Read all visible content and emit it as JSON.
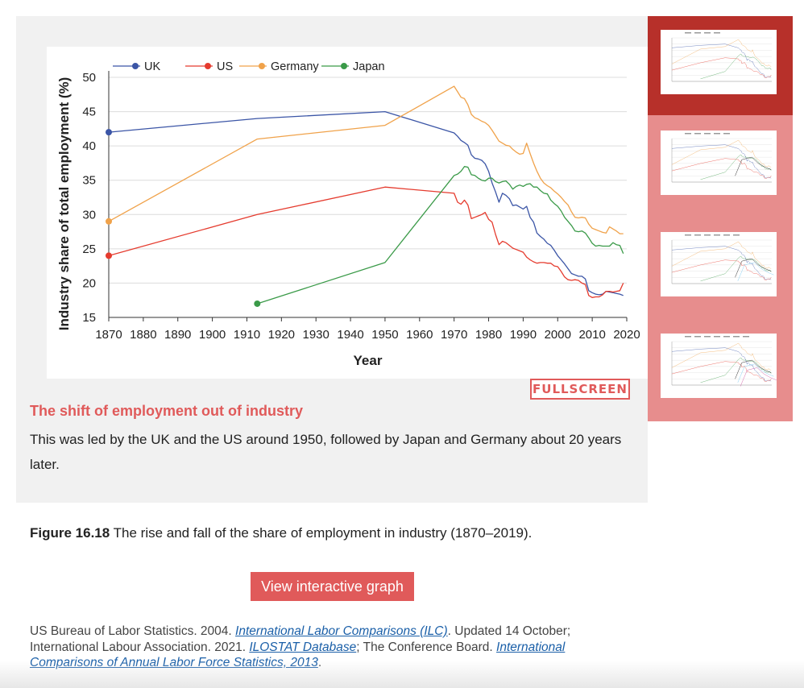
{
  "chart_data": {
    "type": "line",
    "xlabel": "Year",
    "ylabel": "Industry share of total employment (%)",
    "xlim": [
      1870,
      2020
    ],
    "ylim": [
      15,
      50
    ],
    "xticks": [
      1870,
      1880,
      1890,
      1900,
      1910,
      1920,
      1930,
      1940,
      1950,
      1960,
      1970,
      1980,
      1990,
      2000,
      2010,
      2020
    ],
    "yticks": [
      15,
      20,
      25,
      30,
      35,
      40,
      45,
      50
    ],
    "grid": true,
    "legend": "top-left",
    "series": [
      {
        "name": "UK",
        "color": "#3b55a6",
        "points": [
          [
            1870,
            42
          ],
          [
            1913,
            44
          ],
          [
            1950,
            45
          ],
          [
            1970,
            41.9
          ],
          [
            1971,
            41.4
          ],
          [
            1972,
            40.8
          ],
          [
            1973,
            40.5
          ],
          [
            1974,
            40.1
          ],
          [
            1975,
            38.7
          ],
          [
            1976,
            38.2
          ],
          [
            1977,
            38.1
          ],
          [
            1978,
            37.9
          ],
          [
            1979,
            37.4
          ],
          [
            1980,
            36.3
          ],
          [
            1981,
            34.6
          ],
          [
            1982,
            33.3
          ],
          [
            1983,
            31.8
          ],
          [
            1984,
            33.1
          ],
          [
            1985,
            32.8
          ],
          [
            1986,
            32.3
          ],
          [
            1987,
            31.3
          ],
          [
            1988,
            31.4
          ],
          [
            1989,
            31.1
          ],
          [
            1990,
            30.8
          ],
          [
            1991,
            31.2
          ],
          [
            1992,
            29.6
          ],
          [
            1993,
            28.9
          ],
          [
            1994,
            27.3
          ],
          [
            1995,
            26.8
          ],
          [
            1996,
            26.4
          ],
          [
            1997,
            25.8
          ],
          [
            1998,
            25.5
          ],
          [
            1999,
            24.8
          ],
          [
            2000,
            24.0
          ],
          [
            2001,
            23.4
          ],
          [
            2002,
            22.8
          ],
          [
            2003,
            22.1
          ],
          [
            2004,
            21.4
          ],
          [
            2005,
            21.2
          ],
          [
            2006,
            21.0
          ],
          [
            2007,
            21.0
          ],
          [
            2008,
            20.6
          ],
          [
            2009,
            18.9
          ],
          [
            2010,
            18.6
          ],
          [
            2011,
            18.4
          ],
          [
            2012,
            18.3
          ],
          [
            2013,
            18.4
          ],
          [
            2014,
            18.8
          ],
          [
            2015,
            18.7
          ],
          [
            2016,
            18.6
          ],
          [
            2017,
            18.5
          ],
          [
            2018,
            18.4
          ],
          [
            2019,
            18.2
          ]
        ]
      },
      {
        "name": "US",
        "color": "#e53b2e",
        "points": [
          [
            1870,
            24
          ],
          [
            1913,
            30
          ],
          [
            1950,
            34
          ],
          [
            1970,
            33.1
          ],
          [
            1971,
            31.8
          ],
          [
            1972,
            31.5
          ],
          [
            1973,
            32.1
          ],
          [
            1974,
            31.4
          ],
          [
            1975,
            29.4
          ],
          [
            1976,
            29.6
          ],
          [
            1977,
            29.8
          ],
          [
            1978,
            30.0
          ],
          [
            1979,
            30.3
          ],
          [
            1980,
            29.3
          ],
          [
            1981,
            28.9
          ],
          [
            1982,
            27.1
          ],
          [
            1983,
            25.6
          ],
          [
            1984,
            26.1
          ],
          [
            1985,
            25.9
          ],
          [
            1986,
            25.5
          ],
          [
            1987,
            25.1
          ],
          [
            1988,
            24.9
          ],
          [
            1989,
            24.7
          ],
          [
            1990,
            24.5
          ],
          [
            1991,
            23.8
          ],
          [
            1992,
            23.4
          ],
          [
            1993,
            23.1
          ],
          [
            1994,
            22.9
          ],
          [
            1995,
            23.0
          ],
          [
            1996,
            23.0
          ],
          [
            1997,
            22.9
          ],
          [
            1998,
            22.9
          ],
          [
            1999,
            22.5
          ],
          [
            2000,
            22.4
          ],
          [
            2001,
            21.7
          ],
          [
            2002,
            20.9
          ],
          [
            2003,
            20.5
          ],
          [
            2004,
            20.4
          ],
          [
            2005,
            20.5
          ],
          [
            2006,
            20.4
          ],
          [
            2007,
            20.0
          ],
          [
            2008,
            19.8
          ],
          [
            2009,
            18.2
          ],
          [
            2010,
            17.9
          ],
          [
            2011,
            18.0
          ],
          [
            2012,
            18.0
          ],
          [
            2013,
            18.3
          ],
          [
            2014,
            18.8
          ],
          [
            2015,
            18.8
          ],
          [
            2016,
            18.7
          ],
          [
            2017,
            18.8
          ],
          [
            2018,
            18.9
          ],
          [
            2019,
            20.0
          ]
        ]
      },
      {
        "name": "Germany",
        "color": "#f0a24a",
        "points": [
          [
            1870,
            29
          ],
          [
            1913,
            41
          ],
          [
            1950,
            43
          ],
          [
            1970,
            48.7
          ],
          [
            1971,
            47.9
          ],
          [
            1972,
            47.1
          ],
          [
            1973,
            46.9
          ],
          [
            1974,
            46.0
          ],
          [
            1975,
            44.6
          ],
          [
            1976,
            44.1
          ],
          [
            1977,
            43.9
          ],
          [
            1978,
            43.6
          ],
          [
            1979,
            43.4
          ],
          [
            1980,
            43.0
          ],
          [
            1981,
            42.3
          ],
          [
            1982,
            41.5
          ],
          [
            1983,
            40.7
          ],
          [
            1984,
            40.4
          ],
          [
            1985,
            40.1
          ],
          [
            1986,
            40.0
          ],
          [
            1987,
            39.5
          ],
          [
            1988,
            39.1
          ],
          [
            1989,
            38.8
          ],
          [
            1990,
            38.9
          ],
          [
            1991,
            40.4
          ],
          [
            1992,
            38.9
          ],
          [
            1993,
            37.5
          ],
          [
            1994,
            36.3
          ],
          [
            1995,
            35.3
          ],
          [
            1996,
            34.6
          ],
          [
            1997,
            34.2
          ],
          [
            1998,
            33.9
          ],
          [
            1999,
            33.4
          ],
          [
            2000,
            33.0
          ],
          [
            2001,
            32.5
          ],
          [
            2002,
            31.9
          ],
          [
            2003,
            31.4
          ],
          [
            2004,
            30.4
          ],
          [
            2005,
            29.6
          ],
          [
            2006,
            29.5
          ],
          [
            2007,
            29.6
          ],
          [
            2008,
            29.5
          ],
          [
            2009,
            28.6
          ],
          [
            2010,
            28.0
          ],
          [
            2011,
            27.8
          ],
          [
            2012,
            27.6
          ],
          [
            2013,
            27.4
          ],
          [
            2014,
            27.3
          ],
          [
            2015,
            28.2
          ],
          [
            2016,
            27.9
          ],
          [
            2017,
            27.6
          ],
          [
            2018,
            27.2
          ],
          [
            2019,
            27.2
          ]
        ]
      },
      {
        "name": "Japan",
        "color": "#3a9a48",
        "points": [
          [
            1913,
            17
          ],
          [
            1950,
            23
          ],
          [
            1970,
            35.7
          ],
          [
            1971,
            35.9
          ],
          [
            1972,
            36.3
          ],
          [
            1973,
            37.0
          ],
          [
            1974,
            36.9
          ],
          [
            1975,
            35.8
          ],
          [
            1976,
            35.7
          ],
          [
            1977,
            35.3
          ],
          [
            1978,
            35.0
          ],
          [
            1979,
            34.9
          ],
          [
            1980,
            35.3
          ],
          [
            1981,
            35.3
          ],
          [
            1982,
            34.8
          ],
          [
            1983,
            34.6
          ],
          [
            1984,
            34.8
          ],
          [
            1985,
            34.9
          ],
          [
            1986,
            34.4
          ],
          [
            1987,
            33.7
          ],
          [
            1988,
            34.1
          ],
          [
            1989,
            34.3
          ],
          [
            1990,
            34.1
          ],
          [
            1991,
            34.4
          ],
          [
            1992,
            34.5
          ],
          [
            1993,
            34.0
          ],
          [
            1994,
            34.0
          ],
          [
            1995,
            33.5
          ],
          [
            1996,
            33.1
          ],
          [
            1997,
            33.0
          ],
          [
            1998,
            32.1
          ],
          [
            1999,
            31.6
          ],
          [
            2000,
            31.2
          ],
          [
            2001,
            30.5
          ],
          [
            2002,
            29.6
          ],
          [
            2003,
            29.0
          ],
          [
            2004,
            28.4
          ],
          [
            2005,
            27.6
          ],
          [
            2006,
            27.5
          ],
          [
            2007,
            27.6
          ],
          [
            2008,
            27.3
          ],
          [
            2009,
            26.6
          ],
          [
            2010,
            25.8
          ],
          [
            2011,
            25.4
          ],
          [
            2012,
            25.5
          ],
          [
            2013,
            25.4
          ],
          [
            2014,
            25.4
          ],
          [
            2015,
            25.4
          ],
          [
            2016,
            25.9
          ],
          [
            2017,
            25.6
          ],
          [
            2018,
            25.5
          ],
          [
            2019,
            24.3
          ]
        ]
      }
    ]
  },
  "panel": {
    "fullscreen_label": "FULLSCREEN",
    "caption_title": "The shift of employment out of industry",
    "caption_text": "This was led by the UK and the US around 1950, followed by Japan and Germany about 20 years later."
  },
  "figure": {
    "number": "Figure 16.18",
    "text": "The rise and fall of the share of employment in industry (1870–2019)."
  },
  "view_button_label": "View interactive graph",
  "sources": {
    "s1_pre": "US Bureau of Labor Statistics. 2004. ",
    "s1_link": "International Labor Comparisons (ILC)",
    "s1_post": ". Updated 14 October; International Labour Association. 2021. ",
    "s2_link": "ILOSTAT Database",
    "s2_post": "; The Conference Board. ",
    "s3_link": "International Comparisons of Annual Labor Force Statistics, 2013",
    "s3_post": "."
  },
  "thumbnails": {
    "selected_index": 0,
    "count": 4
  }
}
